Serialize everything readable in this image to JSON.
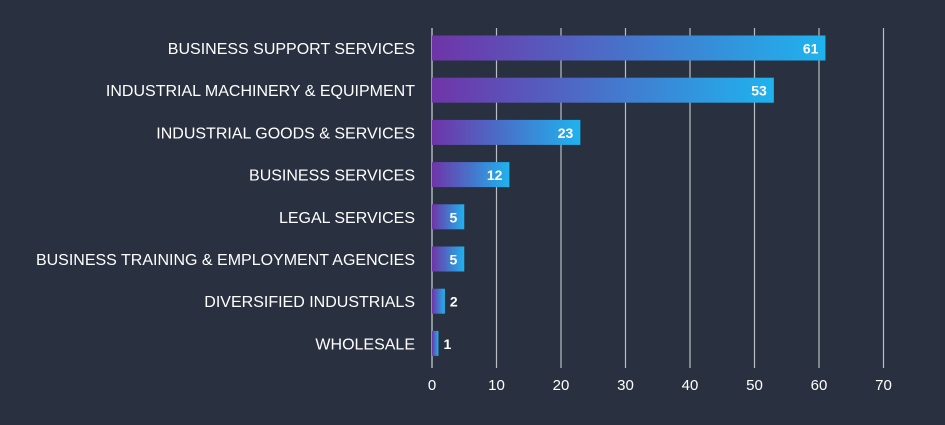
{
  "chart_data": {
    "type": "bar",
    "orientation": "horizontal",
    "categories": [
      "BUSINESS SUPPORT SERVICES",
      "INDUSTRIAL MACHINERY & EQUIPMENT",
      "INDUSTRIAL GOODS & SERVICES",
      "BUSINESS SERVICES",
      "LEGAL SERVICES",
      "BUSINESS TRAINING & EMPLOYMENT AGENCIES",
      "DIVERSIFIED INDUSTRIALS",
      "WHOLESALE"
    ],
    "values": [
      61,
      53,
      23,
      12,
      5,
      5,
      2,
      1
    ],
    "xlim": [
      0,
      70
    ],
    "xticks": [
      0,
      10,
      20,
      30,
      40,
      50,
      60,
      70
    ],
    "grid": true,
    "data_labels": true,
    "title": "",
    "xlabel": "",
    "ylabel": "",
    "colors": {
      "background": "#293140",
      "bar_gradient_start": "#6f34a8",
      "bar_gradient_end": "#1fb3ee",
      "grid": "#b9bec6",
      "text": "#ffffff"
    }
  }
}
